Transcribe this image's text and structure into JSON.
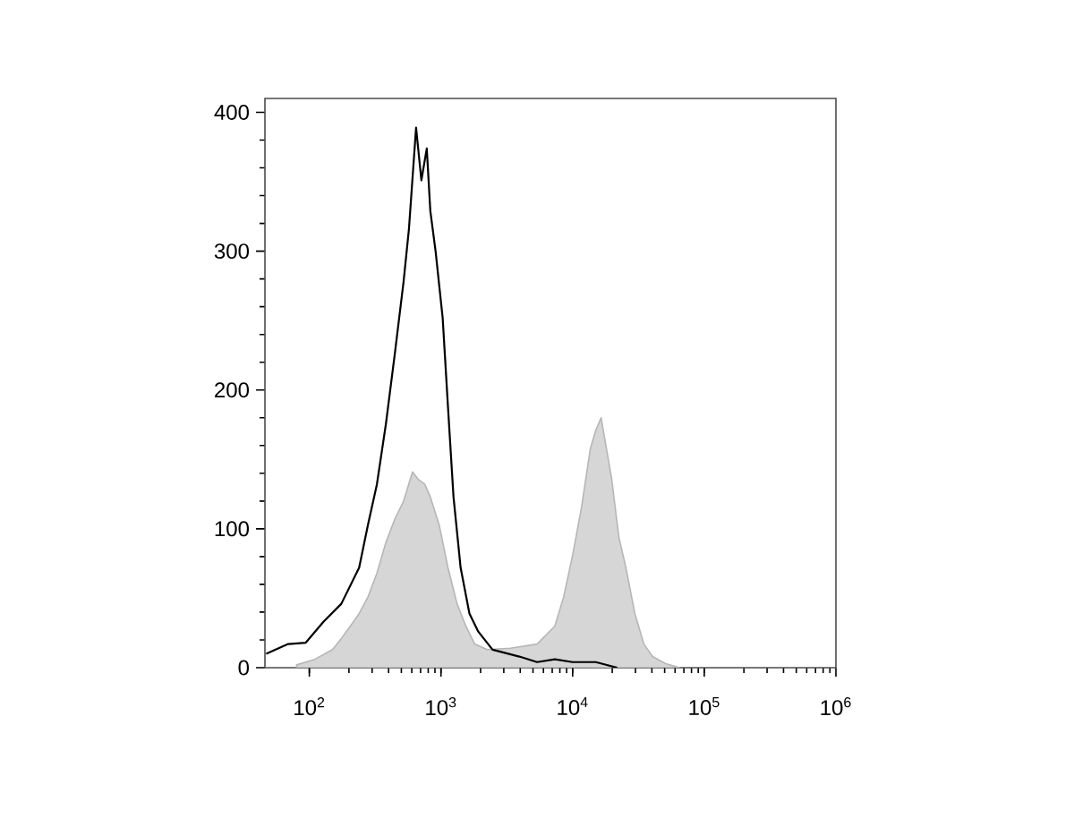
{
  "chart_data": {
    "type": "line",
    "log": "x",
    "grid": false,
    "xlim": [
      46,
      1000000
    ],
    "ylim": [
      0,
      410
    ],
    "xticks": [
      {
        "value": 100,
        "label": "10$^{2}$"
      },
      {
        "value": 1000,
        "label": "10$^{3}$"
      },
      {
        "value": 10000,
        "label": "10$^{4}$"
      },
      {
        "value": 100000,
        "label": "10$^{5}$"
      },
      {
        "value": 1000000,
        "label": "10$^{6}$"
      }
    ],
    "yticks": [
      0,
      100,
      200,
      300,
      400
    ],
    "series": [
      {
        "type": "area",
        "color": "#d6d6d6",
        "x": [
          80,
          110,
          150,
          175,
          205,
          239,
          279,
          326,
          381,
          446,
          520,
          608,
          667,
          755,
          830,
          968,
          1130,
          1325,
          1545,
          1805,
          2245,
          3365,
          5370,
          7330,
          8550,
          10000,
          11700,
          13650,
          15000,
          16450,
          18050,
          19800,
          22450,
          25400,
          29700,
          34750,
          40550,
          50450,
          64700
        ],
        "values": [
          2,
          6,
          13,
          21,
          30,
          39,
          51,
          68,
          90,
          107,
          120,
          141,
          136,
          132,
          123,
          103,
          72,
          46,
          30,
          17,
          13,
          14,
          17,
          30,
          51,
          81,
          116,
          158,
          171,
          180,
          158,
          136,
          94,
          72,
          39,
          17,
          8,
          3,
          0
        ]
      },
      {
        "color": "#000000",
        "x": [
          47,
          69,
          94,
          128,
          175,
          239,
          279,
          326,
          381,
          446,
          520,
          571,
          647,
          710,
          780,
          830,
          910,
          1030,
          1130,
          1245,
          1410,
          1645,
          1920,
          2465,
          3935,
          5370,
          7330,
          10000,
          15000,
          21800
        ],
        "values": [
          10,
          17,
          18,
          33,
          46,
          72,
          103,
          132,
          175,
          226,
          278,
          316,
          389,
          351,
          374,
          329,
          300,
          252,
          188,
          123,
          72,
          39,
          26,
          13,
          8,
          4,
          6,
          4,
          4,
          0
        ]
      }
    ]
  }
}
